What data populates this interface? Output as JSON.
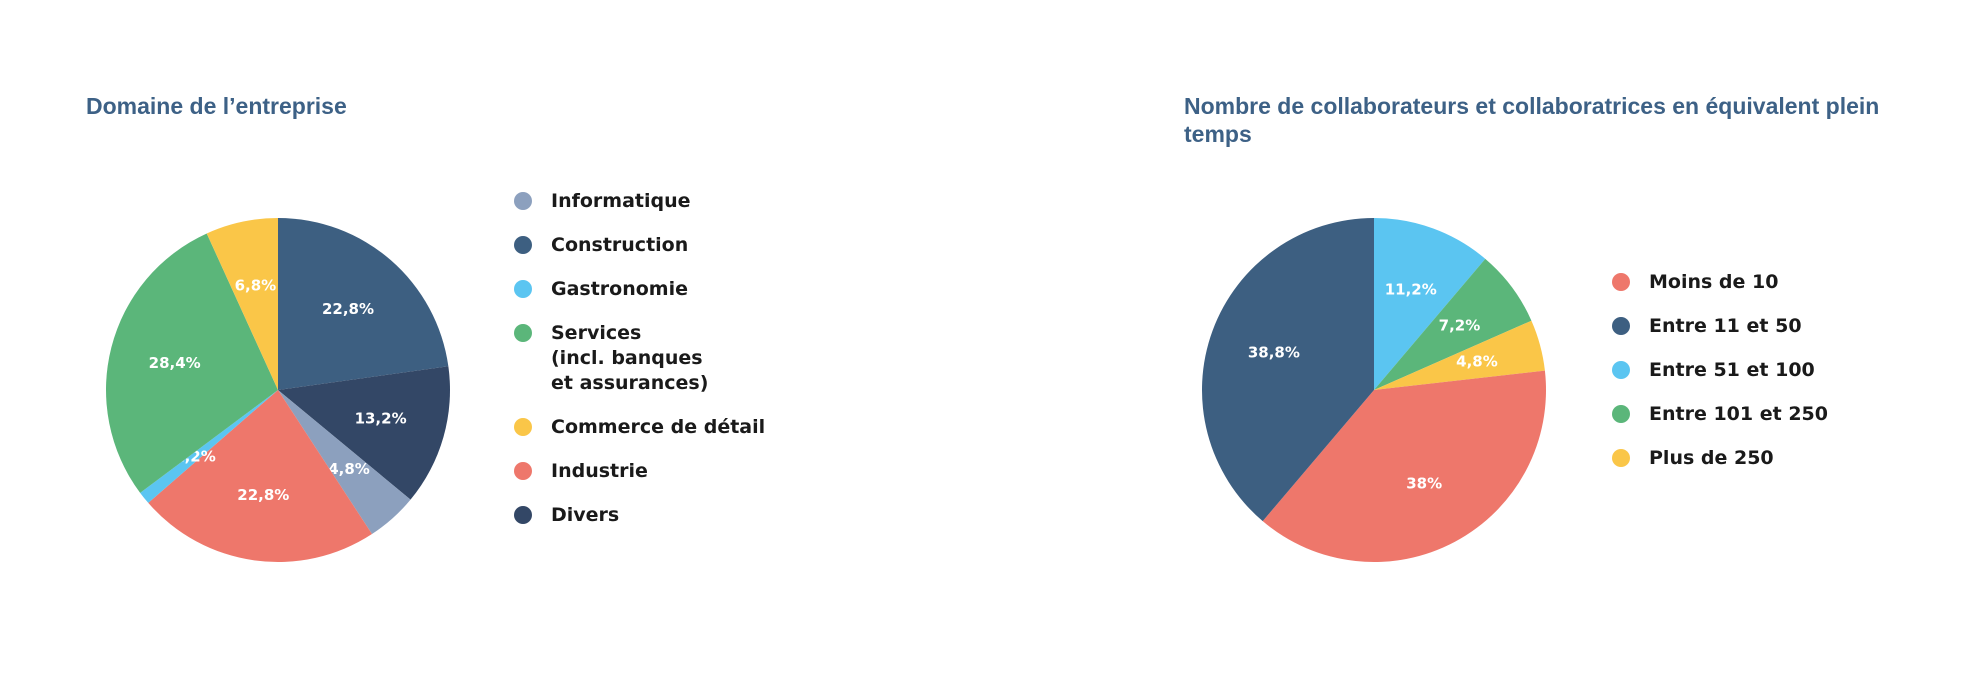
{
  "chart_data": [
    {
      "type": "pie",
      "title": "Domaine de l’entreprise",
      "slices": [
        {
          "name": "Construction",
          "value": 22.8,
          "label": "22,8%",
          "color": "#3d5f81"
        },
        {
          "name": "Divers",
          "value": 13.2,
          "label": "13,2%",
          "color": "#334766"
        },
        {
          "name": "Informatique",
          "value": 4.8,
          "label": "4,8%",
          "color": "#8ca0be"
        },
        {
          "name": "Industrie",
          "value": 22.8,
          "label": "22,8%",
          "color": "#ee776b"
        },
        {
          "name": "Gastronomie",
          "value": 1.2,
          "label": "1,2%",
          "color": "#5bc5f1"
        },
        {
          "name": "Services (incl. banques et assurances)",
          "value": 28.4,
          "label": "28,4%",
          "color": "#5bb67a"
        },
        {
          "name": "Commerce de détail",
          "value": 6.8,
          "label": "6,8%",
          "color": "#fac648"
        }
      ],
      "legend": [
        {
          "label": "Informatique",
          "color": "#8ca0be"
        },
        {
          "label": "Construction",
          "color": "#3d5f81"
        },
        {
          "label": "Gastronomie",
          "color": "#5bc5f1"
        },
        {
          "label": "Services\n(incl. banques\net assurances)",
          "color": "#5bb67a"
        },
        {
          "label": "Commerce de détail",
          "color": "#fac648"
        },
        {
          "label": "Industrie",
          "color": "#ee776b"
        },
        {
          "label": "Divers",
          "color": "#334766"
        }
      ],
      "legend_position": "right"
    },
    {
      "type": "pie",
      "title": "Nombre de collaborateurs et collaboratrices en équivalent plein temps",
      "slices": [
        {
          "name": "Entre 51 et 100",
          "value": 11.2,
          "label": "11,2%",
          "color": "#5bc5f1"
        },
        {
          "name": "Entre 101 et 250",
          "value": 7.2,
          "label": "7,2%",
          "color": "#5bb67a"
        },
        {
          "name": "Plus de 250",
          "value": 4.8,
          "label": "4,8%",
          "color": "#fac648"
        },
        {
          "name": "Moins de 10",
          "value": 38,
          "label": "38%",
          "color": "#ee776b"
        },
        {
          "name": "Entre 11 et 50",
          "value": 38.8,
          "label": "38,8%",
          "color": "#3d5f81"
        }
      ],
      "legend": [
        {
          "label": "Moins de 10",
          "color": "#ee776b"
        },
        {
          "label": "Entre 11 et 50",
          "color": "#3d5f81"
        },
        {
          "label": "Entre 51 et 100",
          "color": "#5bc5f1"
        },
        {
          "label": "Entre 101 et 250",
          "color": "#5bb67a"
        },
        {
          "label": "Plus de 250",
          "color": "#fac648"
        }
      ],
      "legend_position": "right"
    }
  ]
}
